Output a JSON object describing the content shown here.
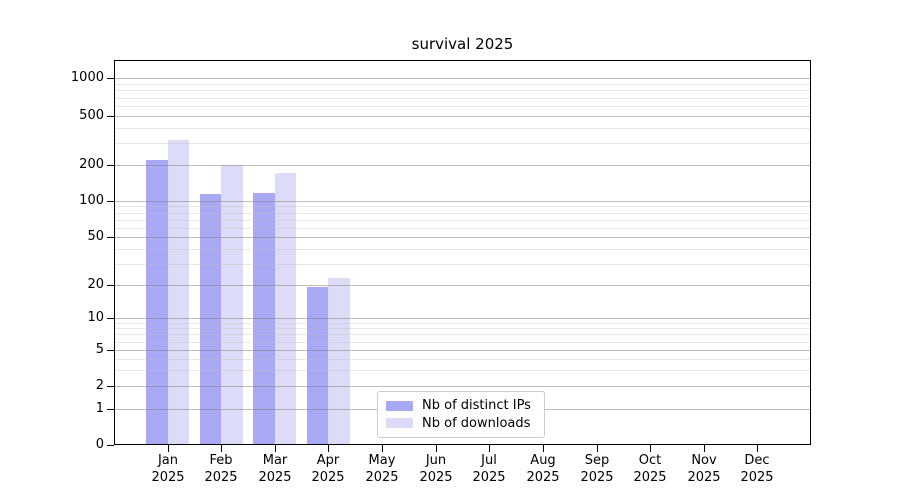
{
  "figure": {
    "title": "survival 2025"
  },
  "chart_data": {
    "type": "bar",
    "title": "survival 2025",
    "yscale": "symlog",
    "grid": true,
    "legend_position": "lower center",
    "ylim": [
      0,
      1400
    ],
    "y_ticks": [
      0,
      1,
      2,
      5,
      10,
      20,
      50,
      100,
      200,
      500,
      1000
    ],
    "categories": [
      "Jan 2025",
      "Feb 2025",
      "Mar 2025",
      "Apr 2025",
      "May 2025",
      "Jun 2025",
      "Jul 2025",
      "Aug 2025",
      "Sep 2025",
      "Oct 2025",
      "Nov 2025",
      "Dec 2025"
    ],
    "x_tick_month_labels": [
      "Jan",
      "Feb",
      "Mar",
      "Apr",
      "May",
      "Jun",
      "Jul",
      "Aug",
      "Sep",
      "Oct",
      "Nov",
      "Dec"
    ],
    "x_tick_year_label": "2025",
    "series": [
      {
        "name": "Nb of distinct IPs",
        "color": "#a8a8f4",
        "values": [
          220,
          114,
          116,
          19,
          0,
          0,
          0,
          0,
          0,
          0,
          0,
          0
        ]
      },
      {
        "name": "Nb of downloads",
        "color": "#dcdcf9",
        "values": [
          320,
          200,
          170,
          23,
          0,
          0,
          0,
          0,
          0,
          0,
          0,
          0
        ]
      }
    ]
  }
}
